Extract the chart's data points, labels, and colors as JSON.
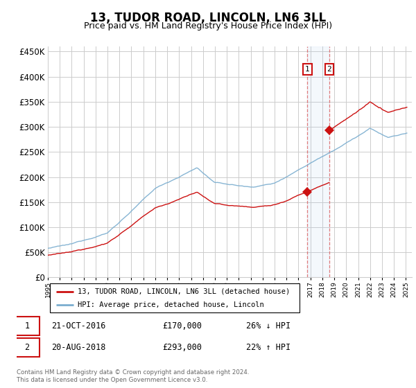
{
  "title": "13, TUDOR ROAD, LINCOLN, LN6 3LL",
  "subtitle": "Price paid vs. HM Land Registry's House Price Index (HPI)",
  "hpi_color": "#7aadcf",
  "property_color": "#cc1111",
  "transaction1_date": "21-OCT-2016",
  "transaction1_price": 170000,
  "transaction1_label": "26% ↓ HPI",
  "transaction2_date": "20-AUG-2018",
  "transaction2_price": 293000,
  "transaction2_label": "22% ↑ HPI",
  "footer": "Contains HM Land Registry data © Crown copyright and database right 2024.\nThis data is licensed under the Open Government Licence v3.0.",
  "ylim": [
    0,
    460000
  ],
  "yticks": [
    0,
    50000,
    100000,
    150000,
    200000,
    250000,
    300000,
    350000,
    400000,
    450000
  ],
  "background_color": "#ffffff",
  "grid_color": "#cccccc",
  "legend_label1": "13, TUDOR ROAD, LINCOLN, LN6 3LL (detached house)",
  "legend_label2": "HPI: Average price, detached house, Lincoln"
}
